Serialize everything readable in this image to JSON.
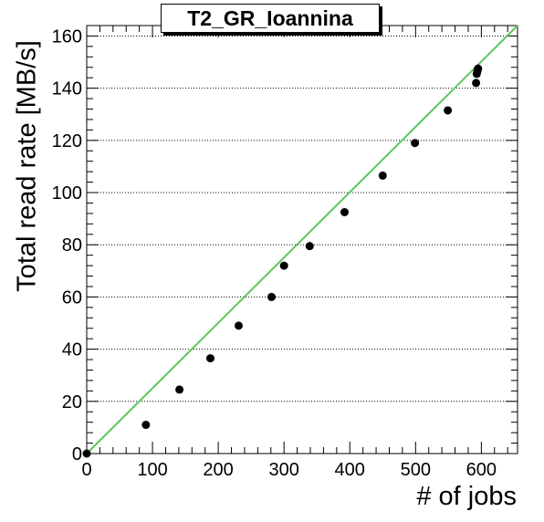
{
  "chart_data": {
    "type": "scatter",
    "title": "T2_GR_Ioannina",
    "xlabel": "# of jobs",
    "ylabel": "Total read rate [MB/s]",
    "xlim": [
      0,
      655
    ],
    "ylim": [
      0,
      164
    ],
    "x_ticks": [
      0,
      100,
      200,
      300,
      400,
      500,
      600
    ],
    "y_ticks": [
      0,
      20,
      40,
      60,
      80,
      100,
      120,
      140,
      160
    ],
    "grid": "horizontal-dotted",
    "series": [
      {
        "points": [
          {
            "x": 0,
            "y": 0
          },
          {
            "x": 90,
            "y": 11
          },
          {
            "x": 141,
            "y": 24.5
          },
          {
            "x": 188,
            "y": 36.5
          },
          {
            "x": 231,
            "y": 49
          },
          {
            "x": 281,
            "y": 60
          },
          {
            "x": 300,
            "y": 72
          },
          {
            "x": 339,
            "y": 79.5
          },
          {
            "x": 392,
            "y": 92.5
          },
          {
            "x": 450,
            "y": 106.5
          },
          {
            "x": 499,
            "y": 119
          },
          {
            "x": 549,
            "y": 131.5
          },
          {
            "x": 592,
            "y": 142
          },
          {
            "x": 593,
            "y": 145.5
          },
          {
            "x": 594,
            "y": 146.5
          },
          {
            "x": 595,
            "y": 147.5
          }
        ],
        "color": "#000000"
      }
    ],
    "fit_line": {
      "from": {
        "x": 0,
        "y": 0
      },
      "to": {
        "x": 655,
        "y": 164
      },
      "color": "#5ac85a"
    }
  }
}
